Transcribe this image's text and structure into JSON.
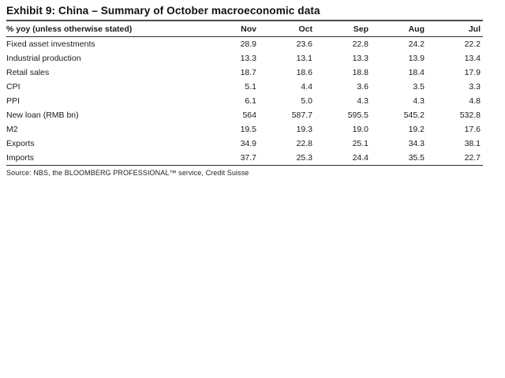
{
  "page": {
    "title": "Exhibit 9: China – Summary of October macroeconomic data",
    "source_note": "Source: NBS, the BLOOMBERG PROFESSIONAL™ service, Credit Suisse"
  },
  "chart_data": {
    "type": "table",
    "title": "Exhibit 9: China – Summary of October macroeconomic data",
    "unit_note": "% yoy (unless otherwise stated)",
    "columns": [
      "% yoy (unless otherwise stated)",
      "Nov",
      "Oct",
      "Sep",
      "Aug",
      "Jul"
    ],
    "rows": [
      {
        "label": "Fixed asset investments",
        "values": [
          "28.9",
          "23.6",
          "22.8",
          "24.2",
          "22.2"
        ]
      },
      {
        "label": "Industrial production",
        "values": [
          "13.3",
          "13.1",
          "13.3",
          "13.9",
          "13.4"
        ]
      },
      {
        "label": "Retail sales",
        "values": [
          "18.7",
          "18.6",
          "18.8",
          "18.4",
          "17.9"
        ]
      },
      {
        "label": "CPI",
        "values": [
          "5.1",
          "4.4",
          "3.6",
          "3.5",
          "3.3"
        ]
      },
      {
        "label": "PPI",
        "values": [
          "6.1",
          "5.0",
          "4.3",
          "4.3",
          "4.8"
        ]
      },
      {
        "label": "New loan (RMB bn)",
        "values": [
          "564",
          "587.7",
          "595.5",
          "545.2",
          "532.8"
        ]
      },
      {
        "label": "M2",
        "values": [
          "19.5",
          "19.3",
          "19.0",
          "19.2",
          "17.6"
        ]
      },
      {
        "label": "Exports",
        "values": [
          "34.9",
          "22.8",
          "25.1",
          "34.3",
          "38.1"
        ]
      },
      {
        "label": "Imports",
        "values": [
          "37.7",
          "25.3",
          "24.4",
          "35.5",
          "22.7"
        ]
      }
    ],
    "source": "Source: NBS, the BLOOMBERG PROFESSIONAL™ service, Credit Suisse"
  },
  "colors": {
    "background": "#ffffff",
    "text": "#1a1a1a",
    "title_rule": "#4a4a4a",
    "table_rule": "#2e2e2e"
  }
}
